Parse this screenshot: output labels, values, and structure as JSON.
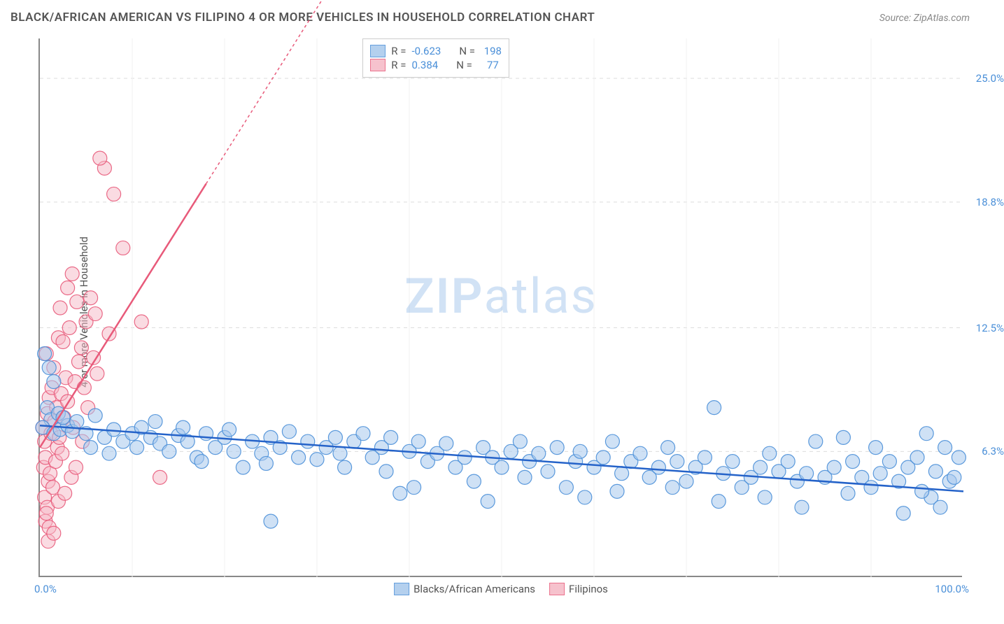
{
  "title": "BLACK/AFRICAN AMERICAN VS FILIPINO 4 OR MORE VEHICLES IN HOUSEHOLD CORRELATION CHART",
  "source": "Source: ZipAtlas.com",
  "y_axis_label": "4 or more Vehicles in Household",
  "watermark_zip": "ZIP",
  "watermark_atlas": "atlas",
  "chart": {
    "type": "scatter",
    "xlim": [
      0,
      100
    ],
    "ylim": [
      0,
      27
    ],
    "background_color": "#ffffff",
    "grid_color": "#dddddd",
    "y_ticks": [
      {
        "value": 6.3,
        "label": "6.3%"
      },
      {
        "value": 12.5,
        "label": "12.5%"
      },
      {
        "value": 18.8,
        "label": "18.8%"
      },
      {
        "value": 25.0,
        "label": "25.0%"
      }
    ],
    "x_ticks": [
      {
        "value": 0,
        "label": "0.0%",
        "align": "left"
      },
      {
        "value": 100,
        "label": "100.0%",
        "align": "right"
      }
    ],
    "x_minor_ticks": [
      10,
      20,
      30,
      40,
      50,
      60,
      70,
      80,
      90
    ]
  },
  "series": {
    "blue": {
      "label": "Blacks/African Americans",
      "fill_color": "#a8c8ec",
      "stroke_color": "#4a8fd8",
      "fill_opacity": 0.55,
      "marker_radius": 10,
      "line_color": "#2563c9",
      "line_width": 2.5,
      "trend": {
        "x1": 0,
        "y1": 7.6,
        "x2": 100,
        "y2": 4.3
      },
      "R": "-0.623",
      "N": "198",
      "points": [
        [
          0.5,
          11.2
        ],
        [
          1,
          10.5
        ],
        [
          1.5,
          9.8
        ],
        [
          0.8,
          8.5
        ],
        [
          1.2,
          7.9
        ],
        [
          2,
          8.2
        ],
        [
          0.3,
          7.5
        ],
        [
          1.5,
          7.2
        ],
        [
          2.2,
          7.4
        ],
        [
          3,
          7.6
        ],
        [
          2.5,
          8.0
        ],
        [
          3.5,
          7.3
        ],
        [
          4,
          7.8
        ],
        [
          5,
          7.2
        ],
        [
          6,
          8.1
        ],
        [
          5.5,
          6.5
        ],
        [
          7,
          7.0
        ],
        [
          8,
          7.4
        ],
        [
          7.5,
          6.2
        ],
        [
          9,
          6.8
        ],
        [
          10,
          7.2
        ],
        [
          10.5,
          6.5
        ],
        [
          11,
          7.5
        ],
        [
          12,
          7.0
        ],
        [
          13,
          6.7
        ],
        [
          12.5,
          7.8
        ],
        [
          14,
          6.3
        ],
        [
          15,
          7.1
        ],
        [
          16,
          6.8
        ],
        [
          15.5,
          7.5
        ],
        [
          17,
          6.0
        ],
        [
          18,
          7.2
        ],
        [
          17.5,
          5.8
        ],
        [
          19,
          6.5
        ],
        [
          20,
          7.0
        ],
        [
          21,
          6.3
        ],
        [
          20.5,
          7.4
        ],
        [
          22,
          5.5
        ],
        [
          23,
          6.8
        ],
        [
          24,
          6.2
        ],
        [
          25,
          7.0
        ],
        [
          24.5,
          5.7
        ],
        [
          26,
          6.5
        ],
        [
          27,
          7.3
        ],
        [
          28,
          6.0
        ],
        [
          25,
          2.8
        ],
        [
          29,
          6.8
        ],
        [
          30,
          5.9
        ],
        [
          31,
          6.5
        ],
        [
          32,
          7.0
        ],
        [
          32.5,
          6.2
        ],
        [
          33,
          5.5
        ],
        [
          34,
          6.8
        ],
        [
          35,
          7.2
        ],
        [
          36,
          6.0
        ],
        [
          37,
          6.5
        ],
        [
          37.5,
          5.3
        ],
        [
          38,
          7.0
        ],
        [
          39,
          4.2
        ],
        [
          40,
          6.3
        ],
        [
          41,
          6.8
        ],
        [
          42,
          5.8
        ],
        [
          40.5,
          4.5
        ],
        [
          43,
          6.2
        ],
        [
          44,
          6.7
        ],
        [
          45,
          5.5
        ],
        [
          46,
          6.0
        ],
        [
          47,
          4.8
        ],
        [
          48,
          6.5
        ],
        [
          48.5,
          3.8
        ],
        [
          49,
          6.0
        ],
        [
          50,
          5.5
        ],
        [
          51,
          6.3
        ],
        [
          52,
          6.8
        ],
        [
          52.5,
          5.0
        ],
        [
          53,
          5.8
        ],
        [
          54,
          6.2
        ],
        [
          55,
          5.3
        ],
        [
          56,
          6.5
        ],
        [
          57,
          4.5
        ],
        [
          58,
          5.8
        ],
        [
          58.5,
          6.3
        ],
        [
          59,
          4.0
        ],
        [
          60,
          5.5
        ],
        [
          61,
          6.0
        ],
        [
          62,
          6.8
        ],
        [
          63,
          5.2
        ],
        [
          62.5,
          4.3
        ],
        [
          64,
          5.8
        ],
        [
          65,
          6.2
        ],
        [
          66,
          5.0
        ],
        [
          67,
          5.5
        ],
        [
          68,
          6.5
        ],
        [
          68.5,
          4.5
        ],
        [
          69,
          5.8
        ],
        [
          70,
          4.8
        ],
        [
          71,
          5.5
        ],
        [
          72,
          6.0
        ],
        [
          73,
          8.5
        ],
        [
          73.5,
          3.8
        ],
        [
          74,
          5.2
        ],
        [
          75,
          5.8
        ],
        [
          76,
          4.5
        ],
        [
          77,
          5.0
        ],
        [
          78,
          5.5
        ],
        [
          79,
          6.2
        ],
        [
          78.5,
          4.0
        ],
        [
          80,
          5.3
        ],
        [
          81,
          5.8
        ],
        [
          82,
          4.8
        ],
        [
          82.5,
          3.5
        ],
        [
          83,
          5.2
        ],
        [
          84,
          6.8
        ],
        [
          85,
          5.0
        ],
        [
          86,
          5.5
        ],
        [
          87,
          7.0
        ],
        [
          87.5,
          4.2
        ],
        [
          88,
          5.8
        ],
        [
          89,
          5.0
        ],
        [
          90,
          4.5
        ],
        [
          90.5,
          6.5
        ],
        [
          91,
          5.2
        ],
        [
          92,
          5.8
        ],
        [
          93,
          4.8
        ],
        [
          93.5,
          3.2
        ],
        [
          94,
          5.5
        ],
        [
          95,
          6.0
        ],
        [
          96,
          7.2
        ],
        [
          96.5,
          4.0
        ],
        [
          97,
          5.3
        ],
        [
          98,
          6.5
        ],
        [
          98.5,
          4.8
        ],
        [
          99,
          5.0
        ],
        [
          99.5,
          6.0
        ],
        [
          97.5,
          3.5
        ],
        [
          95.5,
          4.3
        ]
      ]
    },
    "pink": {
      "label": "Filipinos",
      "fill_color": "#f5b8c5",
      "stroke_color": "#e85a7a",
      "fill_opacity": 0.5,
      "marker_radius": 10,
      "line_color": "#e85a7a",
      "line_width": 2.5,
      "line_dash": "4 4",
      "trend_solid_end": 18,
      "trend": {
        "x1": 0,
        "y1": 6.5,
        "x2": 32,
        "y2": 30
      },
      "R": "0.384",
      "N": "77",
      "points": [
        [
          0.3,
          7.5
        ],
        [
          0.5,
          6.8
        ],
        [
          0.8,
          8.2
        ],
        [
          1,
          9.0
        ],
        [
          1.2,
          7.2
        ],
        [
          0.4,
          5.5
        ],
        [
          1.5,
          10.5
        ],
        [
          0.7,
          11.2
        ],
        [
          1.8,
          8.5
        ],
        [
          2,
          12.0
        ],
        [
          0.6,
          6.0
        ],
        [
          2.2,
          13.5
        ],
        [
          1.3,
          9.5
        ],
        [
          2.5,
          11.8
        ],
        [
          0.9,
          4.8
        ],
        [
          3,
          14.5
        ],
        [
          1.6,
          7.8
        ],
        [
          2.8,
          10.0
        ],
        [
          1.1,
          5.2
        ],
        [
          3.5,
          15.2
        ],
        [
          2.3,
          9.2
        ],
        [
          0.5,
          4.0
        ],
        [
          3.2,
          12.5
        ],
        [
          1.9,
          6.5
        ],
        [
          4,
          13.8
        ],
        [
          2.6,
          8.0
        ],
        [
          0.8,
          3.5
        ],
        [
          4.5,
          11.5
        ],
        [
          3.8,
          9.8
        ],
        [
          1.4,
          4.5
        ],
        [
          5,
          12.8
        ],
        [
          2.1,
          7.0
        ],
        [
          0.6,
          2.8
        ],
        [
          5.5,
          14.0
        ],
        [
          4.2,
          10.8
        ],
        [
          1.7,
          5.8
        ],
        [
          6,
          13.2
        ],
        [
          3.0,
          8.8
        ],
        [
          0.7,
          3.2
        ],
        [
          7,
          20.5
        ],
        [
          5.8,
          11.0
        ],
        [
          2.4,
          6.2
        ],
        [
          8,
          19.2
        ],
        [
          4.8,
          9.5
        ],
        [
          1.0,
          2.5
        ],
        [
          6.5,
          21.0
        ],
        [
          3.6,
          7.5
        ],
        [
          0.9,
          1.8
        ],
        [
          9,
          16.5
        ],
        [
          7.5,
          12.2
        ],
        [
          2.0,
          3.8
        ],
        [
          3.4,
          5.0
        ],
        [
          1.5,
          2.2
        ],
        [
          4.6,
          6.8
        ],
        [
          5.2,
          8.5
        ],
        [
          11,
          12.8
        ],
        [
          2.7,
          4.2
        ],
        [
          6.2,
          10.2
        ],
        [
          3.9,
          5.5
        ],
        [
          13,
          5.0
        ]
      ]
    }
  },
  "stats_labels": {
    "R": "R =",
    "N": "N ="
  },
  "legend_items": [
    {
      "key": "blue",
      "label": "Blacks/African Americans"
    },
    {
      "key": "pink",
      "label": "Filipinos"
    }
  ]
}
